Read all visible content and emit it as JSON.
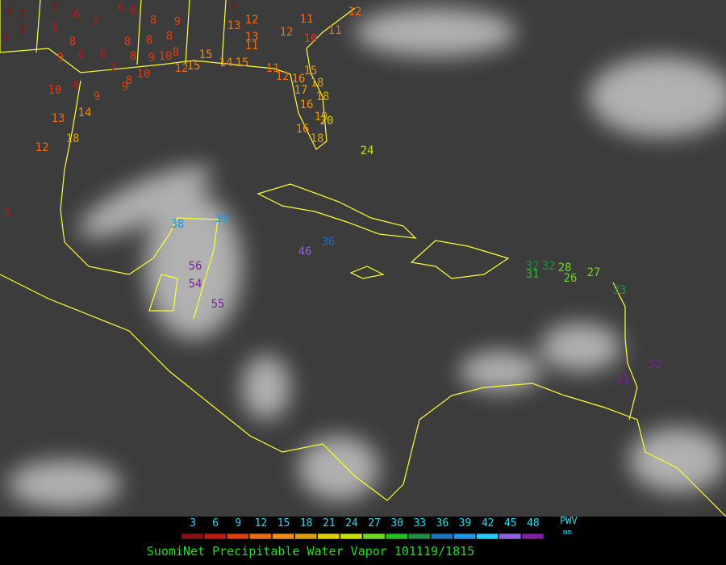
{
  "map": {
    "stations": [
      4,
      2,
      3,
      1,
      3,
      6,
      7,
      6,
      6,
      8,
      9,
      5,
      8,
      8,
      8,
      8,
      9,
      6,
      6,
      7,
      8,
      9,
      10,
      8,
      10,
      8,
      10,
      6,
      9,
      9,
      13,
      14,
      18,
      12,
      5,
      2,
      13,
      12,
      13,
      11,
      12,
      10,
      11,
      11,
      12,
      15,
      12,
      15,
      14,
      15,
      11,
      12,
      16,
      18,
      15,
      17,
      18,
      16,
      19,
      20,
      16,
      18,
      24,
      38,
      39,
      46,
      36,
      56,
      54,
      55,
      32,
      32,
      28,
      31,
      26,
      27,
      33,
      52,
      51
    ]
  },
  "legend": {
    "ticks": [
      3,
      6,
      9,
      12,
      15,
      18,
      21,
      24,
      27,
      30,
      33,
      36,
      39,
      42,
      45,
      48
    ],
    "colors": [
      "#8b1010",
      "#c01818",
      "#e03c10",
      "#f06a10",
      "#f08c10",
      "#d8a010",
      "#e0d000",
      "#c8e000",
      "#70d820",
      "#20c020",
      "#209040",
      "#2070c0",
      "#2098e8",
      "#20d0f0",
      "#9060e0",
      "#8020a0"
    ],
    "unit_top": "PWV",
    "unit_bottom": "mm"
  },
  "caption": "SuomiNet Precipitable Water Vapor 101119/1815"
}
